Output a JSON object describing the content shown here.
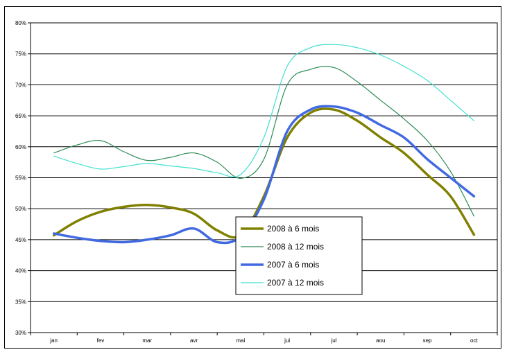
{
  "chart_data": {
    "type": "line",
    "categories": [
      "jan",
      "fev",
      "mar",
      "avr",
      "mai",
      "jui",
      "jul",
      "aou",
      "sep",
      "oct"
    ],
    "ylim": [
      30,
      80
    ],
    "yticks": [
      30,
      35,
      40,
      45,
      50,
      55,
      60,
      65,
      70,
      75,
      80
    ],
    "ytick_labels": [
      "30%",
      "35%",
      "40%",
      "45%",
      "50%",
      "55%",
      "60%",
      "65%",
      "70%",
      "75%",
      "80%"
    ],
    "grid": "horizontal",
    "legend_position": "center",
    "series": [
      {
        "name": "2008 à 6 mois",
        "color": "#808000",
        "style": "thick",
        "x": [
          0,
          0.5,
          1,
          1.5,
          2,
          2.5,
          3,
          3.5,
          4,
          4.5,
          5,
          5.5,
          6,
          6.5,
          7,
          7.5,
          8,
          8.5,
          9
        ],
        "values": [
          45.7,
          48.0,
          49.5,
          50.3,
          50.6,
          50.2,
          49.2,
          46.5,
          45.7,
          52.0,
          61.5,
          65.5,
          66.0,
          64.2,
          61.5,
          59.0,
          55.5,
          52.0,
          45.8
        ]
      },
      {
        "name": "2008 à 12 mois",
        "color": "#2e8b57",
        "style": "thin",
        "x": [
          0,
          0.5,
          1,
          1.5,
          2,
          2.5,
          3,
          3.5,
          4,
          4.5,
          5,
          5.5,
          6,
          6.5,
          7,
          7.5,
          8,
          8.5,
          9
        ],
        "values": [
          59.0,
          60.3,
          61.0,
          59.2,
          57.8,
          58.3,
          59.0,
          57.5,
          54.9,
          58.0,
          70.0,
          72.5,
          72.8,
          70.5,
          67.5,
          64.5,
          61.0,
          56.0,
          48.8
        ]
      },
      {
        "name": "2007 à 6 mois",
        "color": "#4169e1",
        "style": "thick",
        "x": [
          0,
          0.5,
          1,
          1.5,
          2,
          2.5,
          3,
          3.5,
          4,
          4.5,
          5,
          5.5,
          6,
          6.5,
          7,
          7.5,
          8,
          8.5,
          9
        ],
        "values": [
          46.0,
          45.3,
          44.8,
          44.6,
          45.0,
          45.7,
          46.8,
          44.6,
          45.5,
          51.5,
          62.5,
          66.0,
          66.5,
          65.5,
          63.5,
          61.5,
          58.0,
          55.0,
          52.0
        ]
      },
      {
        "name": "2007 à 12 mois",
        "color": "#40e0d0",
        "style": "thin",
        "x": [
          0,
          0.5,
          1,
          1.5,
          2,
          2.5,
          3,
          3.5,
          4,
          4.5,
          5,
          5.5,
          6,
          6.5,
          7,
          7.5,
          8,
          8.5,
          9
        ],
        "values": [
          58.5,
          57.3,
          56.4,
          56.8,
          57.3,
          56.9,
          56.5,
          55.8,
          55.5,
          61.5,
          73.0,
          76.0,
          76.5,
          76.0,
          74.8,
          73.0,
          70.7,
          67.5,
          64.2
        ]
      }
    ]
  }
}
